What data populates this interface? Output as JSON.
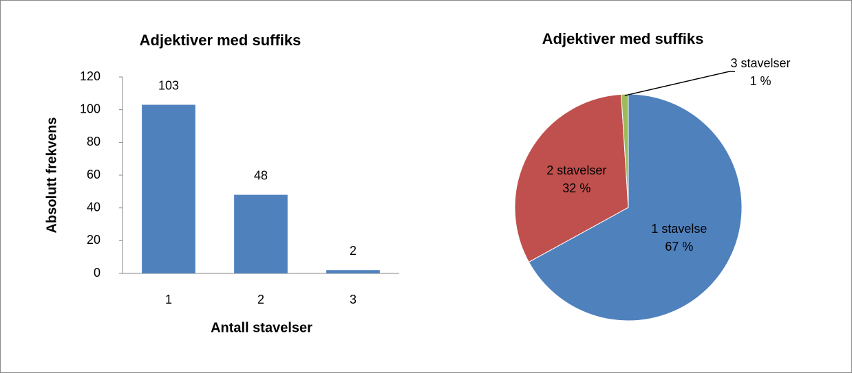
{
  "chart_data": [
    {
      "type": "bar",
      "title": "Adjektiver med suffiks",
      "categories": [
        "1",
        "2",
        "3"
      ],
      "values": [
        103,
        48,
        2
      ],
      "color": "#4f81bd",
      "xlabel": "Antall stavelser",
      "ylabel": "Absolutt frekvens",
      "ylim": [
        0,
        120
      ],
      "yticks": [
        0,
        20,
        40,
        60,
        80,
        100,
        120
      ],
      "grid": false
    },
    {
      "type": "pie",
      "title": "Adjektiver med suffiks",
      "categories": [
        "1 stavelse",
        "2 stavelser",
        "3 stavelser"
      ],
      "values": [
        67,
        32,
        1
      ],
      "value_labels": [
        "67 %",
        "32 %",
        "1 %"
      ],
      "colors": [
        "#4f81bd",
        "#c0504d",
        "#9bbb59"
      ]
    }
  ]
}
